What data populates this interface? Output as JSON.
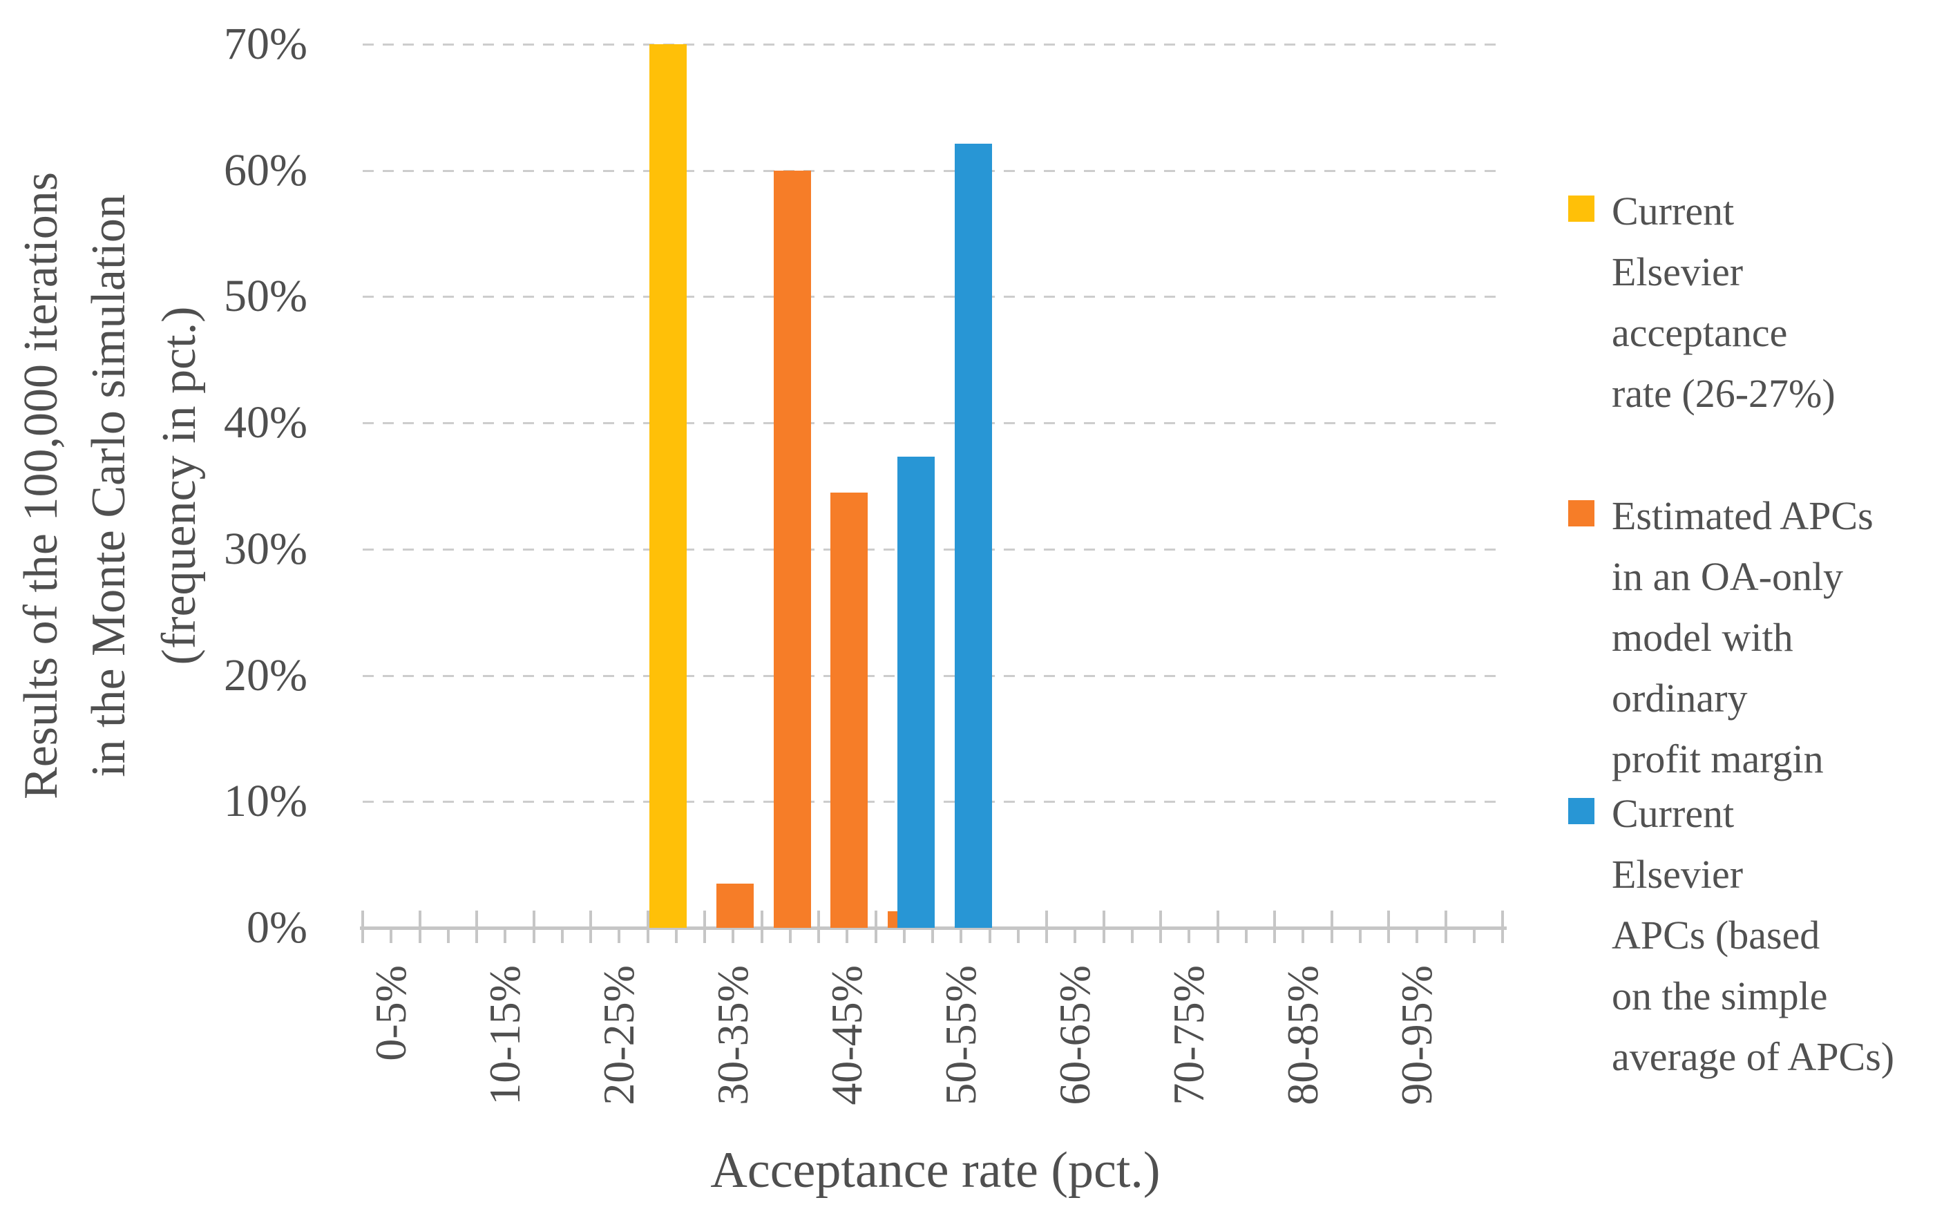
{
  "chart_data": {
    "type": "bar",
    "subtype": "clustered-histogram",
    "title": "",
    "xlabel": "Acceptance rate (pct.)",
    "ylabel_lines": [
      "Results of the 100,000 iterations",
      "in the Monte Carlo simulation",
      "(frequency in pct.)"
    ],
    "ylim": [
      0,
      70
    ],
    "y_tick_values": [
      0,
      10,
      20,
      30,
      40,
      50,
      60,
      70
    ],
    "y_tick_labels": [
      "0%",
      "10%",
      "20%",
      "30%",
      "40%",
      "50%",
      "60%",
      "70%"
    ],
    "grid": "horizontal-dashed",
    "legend_position": "right",
    "bins": [
      "0-5%",
      "5-10%",
      "10-15%",
      "15-20%",
      "20-25%",
      "25-30%",
      "30-35%",
      "35-40%",
      "40-45%",
      "45-50%",
      "50-55%",
      "55-60%",
      "60-65%",
      "65-70%",
      "70-75%",
      "75-80%",
      "80-85%",
      "85-90%",
      "90-95%",
      "95-100%"
    ],
    "x_tick_labels_shown": [
      "0-5%",
      "10-15%",
      "20-25%",
      "30-35%",
      "40-45%",
      "50-55%",
      "60-65%",
      "70-75%",
      "80-85%",
      "90-95%"
    ],
    "series": [
      {
        "name": "Current Elsevier acceptance rate (26-27%)",
        "color": "#FFC008",
        "points": [
          {
            "bin": "25-30%",
            "value": 70.0
          }
        ]
      },
      {
        "name": "Estimated APCs in an OA-only model with ordinary profit margin",
        "color": "#F67D28",
        "points": [
          {
            "bin": "30-35%",
            "value": 3.5
          },
          {
            "bin": "35-40%",
            "value": 60.0
          },
          {
            "bin": "40-45%",
            "value": 34.5
          },
          {
            "bin": "45-50%",
            "value": 1.3
          }
        ]
      },
      {
        "name": "Current Elsevier APCs (based on the simple average of APCs)",
        "color": "#2896D5",
        "points": [
          {
            "bin": "45-50%",
            "value": 37.3
          },
          {
            "bin": "50-55%",
            "value": 62.1
          }
        ]
      }
    ],
    "legend_items": [
      {
        "color": "#FFC008",
        "lines": [
          "Current",
          "Elsevier",
          "acceptance",
          "rate (26-27%)"
        ]
      },
      {
        "color": "#F67D28",
        "lines": [
          "Estimated APCs",
          "in an OA-only",
          "model with",
          "ordinary",
          "profit margin"
        ]
      },
      {
        "color": "#2896D5",
        "lines": [
          "Current",
          "Elsevier",
          "APCs (based",
          "on the simple",
          "average of APCs)"
        ]
      }
    ]
  }
}
